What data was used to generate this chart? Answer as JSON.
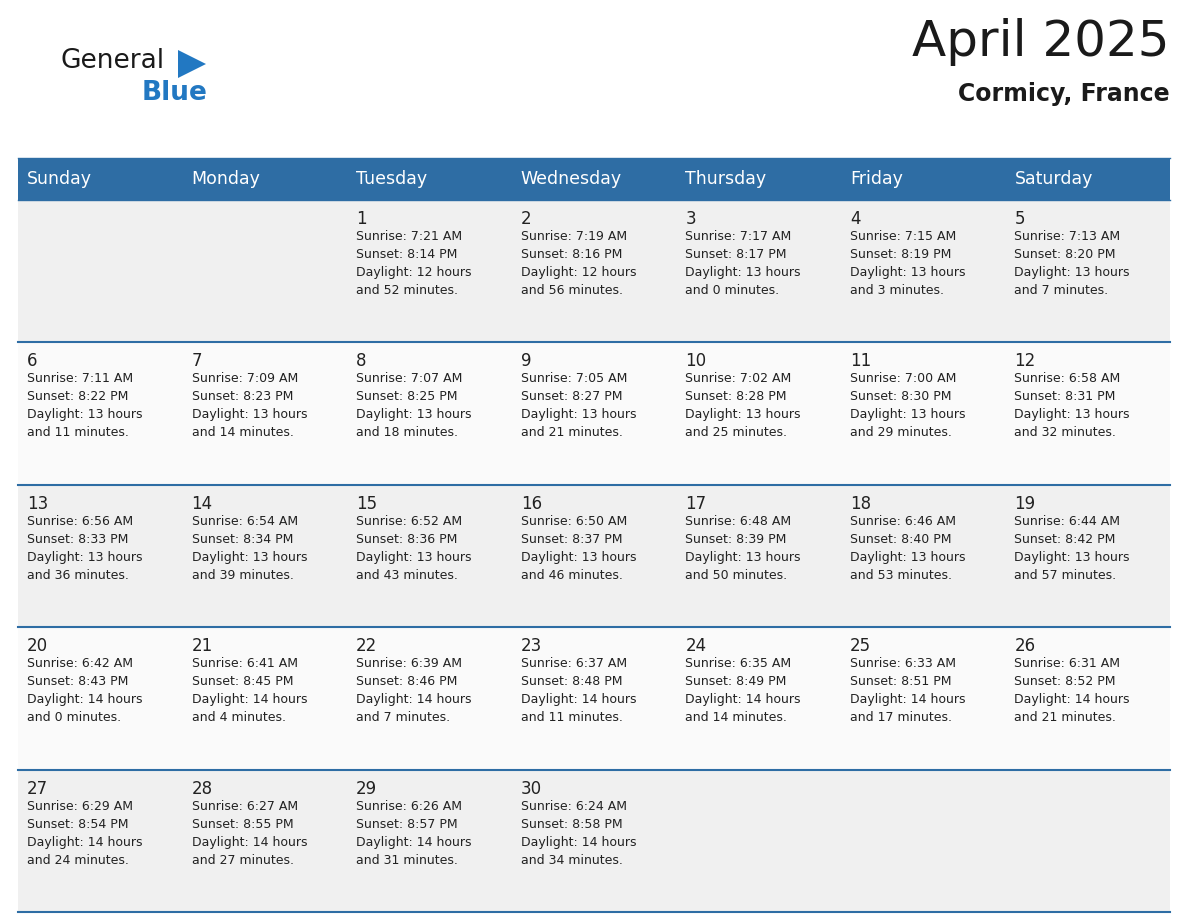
{
  "title": "April 2025",
  "subtitle": "Cormicy, France",
  "header_bg_color": "#2E6DA4",
  "header_text_color": "#FFFFFF",
  "cell_bg_even": "#EFEFEF",
  "cell_bg_odd": "#F9F9F9",
  "border_color": "#2E6DA4",
  "text_color": "#222222",
  "days_of_week": [
    "Sunday",
    "Monday",
    "Tuesday",
    "Wednesday",
    "Thursday",
    "Friday",
    "Saturday"
  ],
  "weeks": [
    [
      {
        "day": "",
        "info": ""
      },
      {
        "day": "",
        "info": ""
      },
      {
        "day": "1",
        "info": "Sunrise: 7:21 AM\nSunset: 8:14 PM\nDaylight: 12 hours\nand 52 minutes."
      },
      {
        "day": "2",
        "info": "Sunrise: 7:19 AM\nSunset: 8:16 PM\nDaylight: 12 hours\nand 56 minutes."
      },
      {
        "day": "3",
        "info": "Sunrise: 7:17 AM\nSunset: 8:17 PM\nDaylight: 13 hours\nand 0 minutes."
      },
      {
        "day": "4",
        "info": "Sunrise: 7:15 AM\nSunset: 8:19 PM\nDaylight: 13 hours\nand 3 minutes."
      },
      {
        "day": "5",
        "info": "Sunrise: 7:13 AM\nSunset: 8:20 PM\nDaylight: 13 hours\nand 7 minutes."
      }
    ],
    [
      {
        "day": "6",
        "info": "Sunrise: 7:11 AM\nSunset: 8:22 PM\nDaylight: 13 hours\nand 11 minutes."
      },
      {
        "day": "7",
        "info": "Sunrise: 7:09 AM\nSunset: 8:23 PM\nDaylight: 13 hours\nand 14 minutes."
      },
      {
        "day": "8",
        "info": "Sunrise: 7:07 AM\nSunset: 8:25 PM\nDaylight: 13 hours\nand 18 minutes."
      },
      {
        "day": "9",
        "info": "Sunrise: 7:05 AM\nSunset: 8:27 PM\nDaylight: 13 hours\nand 21 minutes."
      },
      {
        "day": "10",
        "info": "Sunrise: 7:02 AM\nSunset: 8:28 PM\nDaylight: 13 hours\nand 25 minutes."
      },
      {
        "day": "11",
        "info": "Sunrise: 7:00 AM\nSunset: 8:30 PM\nDaylight: 13 hours\nand 29 minutes."
      },
      {
        "day": "12",
        "info": "Sunrise: 6:58 AM\nSunset: 8:31 PM\nDaylight: 13 hours\nand 32 minutes."
      }
    ],
    [
      {
        "day": "13",
        "info": "Sunrise: 6:56 AM\nSunset: 8:33 PM\nDaylight: 13 hours\nand 36 minutes."
      },
      {
        "day": "14",
        "info": "Sunrise: 6:54 AM\nSunset: 8:34 PM\nDaylight: 13 hours\nand 39 minutes."
      },
      {
        "day": "15",
        "info": "Sunrise: 6:52 AM\nSunset: 8:36 PM\nDaylight: 13 hours\nand 43 minutes."
      },
      {
        "day": "16",
        "info": "Sunrise: 6:50 AM\nSunset: 8:37 PM\nDaylight: 13 hours\nand 46 minutes."
      },
      {
        "day": "17",
        "info": "Sunrise: 6:48 AM\nSunset: 8:39 PM\nDaylight: 13 hours\nand 50 minutes."
      },
      {
        "day": "18",
        "info": "Sunrise: 6:46 AM\nSunset: 8:40 PM\nDaylight: 13 hours\nand 53 minutes."
      },
      {
        "day": "19",
        "info": "Sunrise: 6:44 AM\nSunset: 8:42 PM\nDaylight: 13 hours\nand 57 minutes."
      }
    ],
    [
      {
        "day": "20",
        "info": "Sunrise: 6:42 AM\nSunset: 8:43 PM\nDaylight: 14 hours\nand 0 minutes."
      },
      {
        "day": "21",
        "info": "Sunrise: 6:41 AM\nSunset: 8:45 PM\nDaylight: 14 hours\nand 4 minutes."
      },
      {
        "day": "22",
        "info": "Sunrise: 6:39 AM\nSunset: 8:46 PM\nDaylight: 14 hours\nand 7 minutes."
      },
      {
        "day": "23",
        "info": "Sunrise: 6:37 AM\nSunset: 8:48 PM\nDaylight: 14 hours\nand 11 minutes."
      },
      {
        "day": "24",
        "info": "Sunrise: 6:35 AM\nSunset: 8:49 PM\nDaylight: 14 hours\nand 14 minutes."
      },
      {
        "day": "25",
        "info": "Sunrise: 6:33 AM\nSunset: 8:51 PM\nDaylight: 14 hours\nand 17 minutes."
      },
      {
        "day": "26",
        "info": "Sunrise: 6:31 AM\nSunset: 8:52 PM\nDaylight: 14 hours\nand 21 minutes."
      }
    ],
    [
      {
        "day": "27",
        "info": "Sunrise: 6:29 AM\nSunset: 8:54 PM\nDaylight: 14 hours\nand 24 minutes."
      },
      {
        "day": "28",
        "info": "Sunrise: 6:27 AM\nSunset: 8:55 PM\nDaylight: 14 hours\nand 27 minutes."
      },
      {
        "day": "29",
        "info": "Sunrise: 6:26 AM\nSunset: 8:57 PM\nDaylight: 14 hours\nand 31 minutes."
      },
      {
        "day": "30",
        "info": "Sunrise: 6:24 AM\nSunset: 8:58 PM\nDaylight: 14 hours\nand 34 minutes."
      },
      {
        "day": "",
        "info": ""
      },
      {
        "day": "",
        "info": ""
      },
      {
        "day": "",
        "info": ""
      }
    ]
  ],
  "logo_general_color": "#1a1a1a",
  "logo_blue_color": "#2278C2",
  "logo_triangle_color": "#2278C2",
  "title_color": "#1a1a1a",
  "subtitle_color": "#1a1a1a"
}
